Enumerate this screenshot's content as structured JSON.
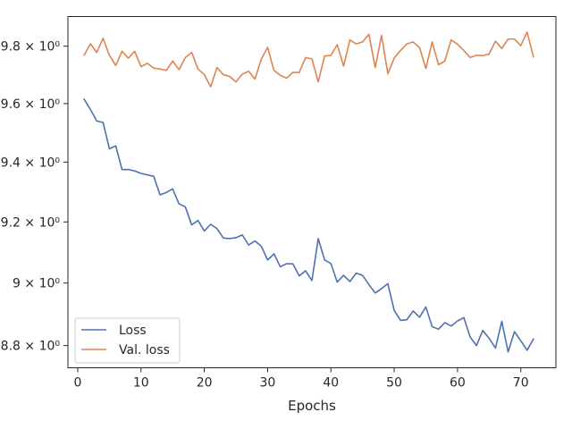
{
  "chart_data": {
    "type": "line",
    "title": "",
    "xlabel": "Epochs",
    "ylabel": "",
    "xlim": [
      -1.55,
      75.55
    ],
    "ylim": [
      8.73,
      9.905
    ],
    "y_scale": "log",
    "grid": false,
    "legend_position": "bottom-left",
    "x_ticks": [
      0,
      10,
      20,
      30,
      40,
      50,
      60,
      70
    ],
    "x_tick_labels": [
      "0",
      "10",
      "20",
      "30",
      "40",
      "50",
      "60",
      "70"
    ],
    "y_ticks": [
      8.8,
      9.0,
      9.2,
      9.4,
      9.6,
      9.8
    ],
    "y_tick_labels": [
      "8.8 × 10⁰",
      "9 × 10⁰",
      "9.2 × 10⁰",
      "9.4 × 10⁰",
      "9.6 × 10⁰",
      "9.8 × 10⁰"
    ],
    "x": [
      1,
      2,
      3,
      4,
      5,
      6,
      7,
      8,
      9,
      10,
      11,
      12,
      13,
      14,
      15,
      16,
      17,
      18,
      19,
      20,
      21,
      22,
      23,
      24,
      25,
      26,
      27,
      28,
      29,
      30,
      31,
      32,
      33,
      34,
      35,
      36,
      37,
      38,
      39,
      40,
      41,
      42,
      43,
      44,
      45,
      46,
      47,
      48,
      49,
      50,
      51,
      52,
      53,
      54,
      55,
      56,
      57,
      58,
      59,
      60,
      61,
      62,
      63,
      64,
      65,
      66,
      67,
      68,
      69,
      70,
      71,
      72
    ],
    "series": [
      {
        "name": "Loss",
        "color": "#4c72b0",
        "values": [
          9.615,
          9.58,
          9.54,
          9.535,
          9.445,
          9.455,
          9.375,
          9.375,
          9.37,
          9.362,
          9.357,
          9.352,
          9.29,
          9.298,
          9.31,
          9.26,
          9.25,
          9.19,
          9.205,
          9.17,
          9.192,
          9.178,
          9.147,
          9.145,
          9.148,
          9.157,
          9.124,
          9.137,
          9.12,
          9.075,
          9.095,
          9.053,
          9.063,
          9.062,
          9.023,
          9.04,
          9.008,
          9.145,
          9.075,
          9.063,
          9.003,
          9.025,
          9.005,
          9.032,
          9.025,
          8.995,
          8.968,
          8.982,
          8.998,
          8.912,
          8.88,
          8.882,
          8.91,
          8.89,
          8.923,
          8.86,
          8.852,
          8.873,
          8.862,
          8.878,
          8.889,
          8.827,
          8.8,
          8.848,
          8.823,
          8.792,
          8.877,
          8.78,
          8.844,
          8.815,
          8.785,
          8.821
        ]
      },
      {
        "name": "Val. loss",
        "color": "#dd8452",
        "values": [
          9.768,
          9.808,
          9.778,
          9.828,
          9.768,
          9.732,
          9.782,
          9.758,
          9.782,
          9.728,
          9.74,
          9.723,
          9.72,
          9.715,
          9.748,
          9.718,
          9.76,
          9.778,
          9.72,
          9.7,
          9.658,
          9.725,
          9.7,
          9.694,
          9.675,
          9.702,
          9.712,
          9.685,
          9.754,
          9.796,
          9.715,
          9.698,
          9.688,
          9.708,
          9.708,
          9.76,
          9.755,
          9.675,
          9.765,
          9.768,
          9.805,
          9.73,
          9.822,
          9.808,
          9.815,
          9.842,
          9.725,
          9.838,
          9.703,
          9.758,
          9.785,
          9.808,
          9.815,
          9.795,
          9.722,
          9.815,
          9.735,
          9.748,
          9.822,
          9.807,
          9.785,
          9.76,
          9.768,
          9.767,
          9.772,
          9.818,
          9.792,
          9.825,
          9.825,
          9.802,
          9.85,
          9.762
        ]
      }
    ]
  }
}
